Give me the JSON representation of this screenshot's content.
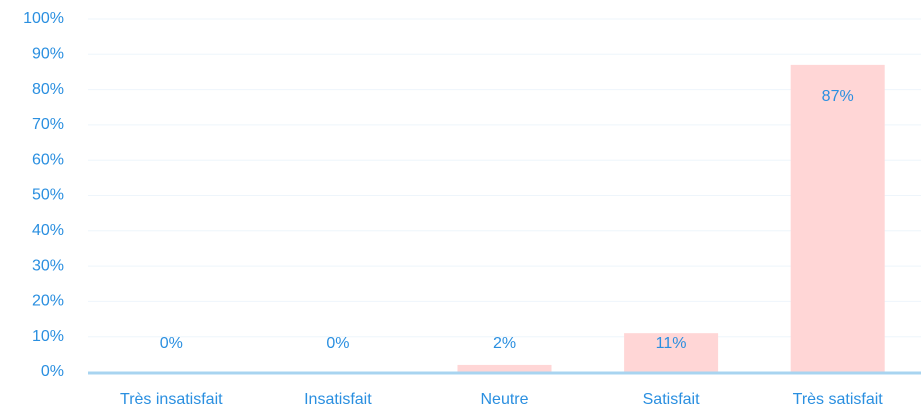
{
  "chart_data": {
    "type": "bar",
    "categories": [
      "Très insatisfait",
      "Insatisfait",
      "Neutre",
      "Satisfait",
      "Très satisfait"
    ],
    "values": [
      0,
      0,
      2,
      11,
      87
    ],
    "value_labels": [
      "0%",
      "0%",
      "2%",
      "11%",
      "87%"
    ],
    "color": "#ffd6d6",
    "ylim": [
      0,
      100
    ],
    "yticks": [
      {
        "value": 0,
        "label": "0%"
      },
      {
        "value": 10,
        "label": "10%"
      },
      {
        "value": 20,
        "label": "20%"
      },
      {
        "value": 30,
        "label": "30%"
      },
      {
        "value": 40,
        "label": "40%"
      },
      {
        "value": 50,
        "label": "50%"
      },
      {
        "value": 60,
        "label": "60%"
      },
      {
        "value": 70,
        "label": "70%"
      },
      {
        "value": 80,
        "label": "80%"
      },
      {
        "value": 90,
        "label": "90%"
      },
      {
        "value": 100,
        "label": "100%"
      }
    ],
    "grid": true
  }
}
